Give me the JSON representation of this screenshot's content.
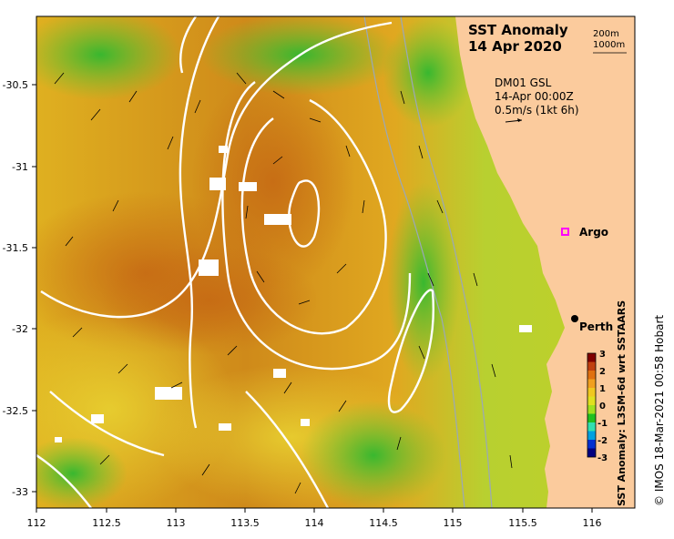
{
  "title": {
    "line1": "SST Anomaly",
    "line2": "14 Apr 2020"
  },
  "legend_depths": {
    "d1": "200m",
    "d2": "1000m"
  },
  "current_info": {
    "line1": "DM01 GSL",
    "line2": "14-Apr 00:00Z",
    "line3": "0.5m/s (1kt 6h)"
  },
  "places": {
    "argo": "Argo",
    "perth": "Perth"
  },
  "colorbar": {
    "title": "SST Anomaly: L3SM-6d wrt SSTAARS",
    "ticks": [
      "3",
      "2",
      "1",
      "0",
      "-1",
      "-2",
      "-3"
    ],
    "colors": [
      "#000080",
      "#0030d0",
      "#00a0e0",
      "#30e0b0",
      "#20c020",
      "#a0e020",
      "#f0e020",
      "#f0a020",
      "#e07010",
      "#c04010",
      "#800000"
    ]
  },
  "axes": {
    "x_ticks": [
      "112",
      "112.5",
      "113",
      "113.5",
      "114",
      "114.5",
      "115",
      "115.5",
      "116"
    ],
    "y_ticks": [
      "-30.5",
      "-31",
      "-31.5",
      "-32",
      "-32.5",
      "-33"
    ]
  },
  "credit": "© IMOS 18-Mar-2021 00:58 Hobart",
  "colors": {
    "land": "#fbcb9d",
    "warm_anomaly": "#d98a1a",
    "mild_anomaly": "#e8c830",
    "cool_anomaly": "#3cbf3c",
    "ssh_contour": "#ffffff",
    "bathymetry": "#9aa8b8",
    "argo_marker": "#ff00ff"
  }
}
